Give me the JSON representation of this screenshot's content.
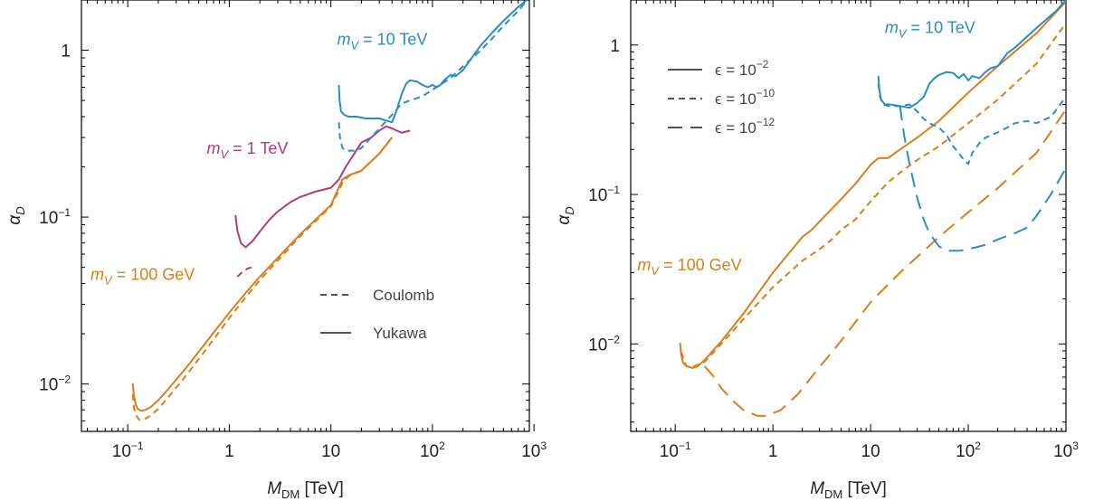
{
  "colors": {
    "orange": "#d97e1a",
    "magenta": "#b03c7a",
    "blue": "#2b8cc4",
    "legend_gray": "#555555"
  },
  "chart_data": [
    {
      "type": "line",
      "xscale": "log",
      "yscale": "log",
      "xlim": [
        0.035,
        900
      ],
      "ylim": [
        0.0052,
        2.0
      ],
      "xlabel": "M_DM [TeV]",
      "ylabel": "α_D",
      "xlabel_parts": {
        "main": "M",
        "sub": "DM",
        "rest": " [TeV]"
      },
      "ylabel_parts": {
        "main": "α",
        "sub": "D"
      },
      "xticks": [
        {
          "v": 0.1,
          "base": "10",
          "exp": "−1"
        },
        {
          "v": 1,
          "base": "1",
          "exp": ""
        },
        {
          "v": 10,
          "base": "10",
          "exp": ""
        },
        {
          "v": 100,
          "base": "10",
          "exp": "2"
        },
        {
          "v": 1000,
          "base": "10",
          "exp": "3"
        }
      ],
      "yticks": [
        {
          "v": 0.01,
          "base": "10",
          "exp": "−2"
        },
        {
          "v": 0.1,
          "base": "10",
          "exp": "−1"
        },
        {
          "v": 1,
          "base": "1",
          "exp": ""
        }
      ],
      "legend": {
        "placement": "lower-right",
        "entries": [
          {
            "label": "Coulomb",
            "style": "dashed"
          },
          {
            "label": "Yukawa",
            "style": "solid"
          }
        ]
      },
      "annotations": [
        {
          "sym": "m",
          "sub": "V",
          "rest": " = 10 TeV",
          "color": "blue",
          "at": [
            11.5,
            1.08
          ]
        },
        {
          "sym": "m",
          "sub": "V",
          "rest": " = 1 TeV",
          "color": "magenta",
          "at": [
            0.6,
            0.24
          ]
        },
        {
          "sym": "m",
          "sub": "V",
          "rest": " = 100 GeV",
          "color": "orange",
          "at": [
            0.043,
            0.042
          ]
        }
      ],
      "series": [
        {
          "color": "orange",
          "style": "solid",
          "x": [
            0.112,
            0.115,
            0.12,
            0.125,
            0.135,
            0.15,
            0.17,
            0.2,
            0.25,
            0.3,
            0.4,
            0.5,
            0.7,
            1,
            1.5,
            2,
            3,
            5,
            7,
            10,
            13,
            15,
            20,
            30,
            40
          ],
          "y": [
            0.0101,
            0.0085,
            0.0075,
            0.0071,
            0.0069,
            0.007,
            0.0073,
            0.008,
            0.0093,
            0.0106,
            0.0131,
            0.0156,
            0.0203,
            0.0268,
            0.036,
            0.044,
            0.057,
            0.079,
            0.096,
            0.118,
            0.168,
            0.178,
            0.19,
            0.24,
            0.3
          ]
        },
        {
          "color": "orange",
          "style": "dashed",
          "x": [
            0.112,
            0.115,
            0.12,
            0.13,
            0.14,
            0.15,
            0.17,
            0.2,
            0.25,
            0.3,
            0.4,
            0.5,
            0.7,
            1,
            1.5,
            2,
            3,
            5,
            7,
            10,
            13,
            15,
            20,
            30,
            40
          ],
          "y": [
            0.0087,
            0.0072,
            0.0065,
            0.0061,
            0.0061,
            0.0062,
            0.0065,
            0.0071,
            0.0083,
            0.0095,
            0.0118,
            0.0141,
            0.0185,
            0.0248,
            0.034,
            0.042,
            0.055,
            0.077,
            0.094,
            0.116,
            0.16,
            0.176,
            0.19,
            0.24,
            0.3
          ]
        },
        {
          "color": "magenta",
          "style": "solid",
          "x": [
            1.15,
            1.2,
            1.3,
            1.45,
            1.7,
            2,
            2.5,
            3,
            4,
            5,
            7,
            10,
            12,
            14,
            17,
            20,
            25,
            30,
            35,
            40,
            50,
            60
          ],
          "y": [
            0.103,
            0.083,
            0.07,
            0.066,
            0.072,
            0.082,
            0.097,
            0.108,
            0.123,
            0.132,
            0.142,
            0.15,
            0.168,
            0.2,
            0.24,
            0.28,
            0.3,
            0.33,
            0.35,
            0.34,
            0.32,
            0.33
          ]
        },
        {
          "color": "magenta",
          "style": "dashed",
          "x": [
            1.2,
            1.25,
            1.35,
            1.5,
            1.8
          ],
          "y": [
            0.044,
            0.045,
            0.047,
            0.049,
            0.051
          ]
        },
        {
          "color": "blue",
          "style": "solid",
          "x": [
            12,
            12.2,
            12.6,
            13.5,
            15,
            18,
            22,
            30,
            40,
            44,
            50,
            55,
            60,
            70,
            80,
            90,
            100,
            110,
            120,
            130,
            150,
            170,
            200,
            250,
            300,
            400,
            500,
            700,
            850
          ],
          "y": [
            0.62,
            0.5,
            0.43,
            0.41,
            0.4,
            0.4,
            0.39,
            0.39,
            0.37,
            0.43,
            0.55,
            0.63,
            0.66,
            0.65,
            0.62,
            0.6,
            0.62,
            0.6,
            0.62,
            0.66,
            0.71,
            0.7,
            0.76,
            0.92,
            1.07,
            1.3,
            1.5,
            1.82,
            2.0
          ]
        },
        {
          "color": "blue",
          "style": "dashed",
          "x": [
            12,
            12.3,
            13,
            14,
            16,
            18,
            20,
            25,
            30,
            40,
            50,
            60,
            80,
            100,
            150,
            200,
            300,
            400,
            500,
            700,
            850
          ],
          "y": [
            0.37,
            0.3,
            0.26,
            0.25,
            0.25,
            0.25,
            0.26,
            0.3,
            0.34,
            0.41,
            0.48,
            0.5,
            0.53,
            0.58,
            0.68,
            0.8,
            1.0,
            1.2,
            1.4,
            1.72,
            1.98
          ]
        }
      ]
    },
    {
      "type": "line",
      "xscale": "log",
      "yscale": "log",
      "xlim": [
        0.035,
        1000
      ],
      "ylim": [
        0.0026,
        2.0
      ],
      "xlabel": "M_DM [TeV]",
      "ylabel": "α_D",
      "xlabel_parts": {
        "main": "M",
        "sub": "DM",
        "rest": " [TeV]"
      },
      "ylabel_parts": {
        "main": "α",
        "sub": "D"
      },
      "xticks": [
        {
          "v": 0.1,
          "base": "10",
          "exp": "−1"
        },
        {
          "v": 1,
          "base": "1",
          "exp": ""
        },
        {
          "v": 10,
          "base": "10",
          "exp": ""
        },
        {
          "v": 100,
          "base": "10",
          "exp": "2"
        },
        {
          "v": 1000,
          "base": "10",
          "exp": "3"
        }
      ],
      "yticks": [
        {
          "v": 0.01,
          "base": "10",
          "exp": "−2"
        },
        {
          "v": 0.1,
          "base": "10",
          "exp": "−1"
        },
        {
          "v": 1,
          "base": "1",
          "exp": ""
        }
      ],
      "legend": {
        "placement": "top-left",
        "entries": [
          {
            "pre": "ϵ = 10",
            "exp": "−2",
            "style": "solid"
          },
          {
            "pre": "ϵ = 10",
            "exp": "−10",
            "style": "dashed"
          },
          {
            "pre": "ϵ = 10",
            "exp": "−12",
            "style": "longdash"
          }
        ]
      },
      "annotations": [
        {
          "sym": "m",
          "sub": "V",
          "rest": " = 10 TeV",
          "color": "blue",
          "at": [
            14,
            1.2
          ]
        },
        {
          "sym": "m",
          "sub": "V",
          "rest": " = 100 GeV",
          "color": "orange",
          "at": [
            0.041,
            0.031
          ]
        }
      ],
      "series": [
        {
          "color": "orange",
          "style": "solid",
          "x": [
            0.112,
            0.115,
            0.12,
            0.13,
            0.15,
            0.17,
            0.2,
            0.3,
            0.5,
            1,
            2,
            2.5,
            3,
            5,
            7,
            10,
            12,
            15,
            20,
            30,
            50,
            100,
            200,
            500,
            1000
          ],
          "y": [
            0.0102,
            0.0085,
            0.0075,
            0.0071,
            0.0069,
            0.0071,
            0.0078,
            0.0105,
            0.016,
            0.03,
            0.052,
            0.058,
            0.066,
            0.093,
            0.118,
            0.158,
            0.175,
            0.175,
            0.2,
            0.24,
            0.31,
            0.48,
            0.72,
            1.2,
            1.95
          ]
        },
        {
          "color": "orange",
          "style": "dashed",
          "x": [
            0.115,
            0.13,
            0.15,
            0.2,
            0.3,
            0.5,
            1,
            2,
            3,
            4,
            5,
            7,
            10,
            15,
            20,
            30,
            50,
            100,
            200,
            500,
            1000
          ],
          "y": [
            0.0088,
            0.0071,
            0.007,
            0.0076,
            0.0101,
            0.0147,
            0.024,
            0.036,
            0.043,
            0.05,
            0.058,
            0.068,
            0.09,
            0.12,
            0.14,
            0.17,
            0.21,
            0.3,
            0.43,
            0.75,
            1.4
          ]
        },
        {
          "color": "orange",
          "style": "longdash",
          "x": [
            0.2,
            0.25,
            0.3,
            0.4,
            0.5,
            0.7,
            0.85,
            1.2,
            1.8,
            3,
            5,
            10,
            20,
            50,
            100,
            200,
            500,
            1000
          ],
          "y": [
            0.0071,
            0.006,
            0.005,
            0.0041,
            0.0036,
            0.0033,
            0.0033,
            0.0036,
            0.0046,
            0.007,
            0.0105,
            0.019,
            0.03,
            0.052,
            0.076,
            0.11,
            0.19,
            0.37
          ]
        },
        {
          "color": "blue",
          "style": "solid",
          "x": [
            12,
            12.3,
            12.8,
            14,
            16,
            20,
            25,
            30,
            35,
            40,
            45,
            50,
            60,
            70,
            80,
            90,
            100,
            110,
            130,
            150,
            170,
            200,
            250,
            300,
            500,
            800,
            1000
          ],
          "y": [
            0.62,
            0.5,
            0.43,
            0.4,
            0.4,
            0.39,
            0.38,
            0.41,
            0.45,
            0.55,
            0.6,
            0.63,
            0.66,
            0.65,
            0.6,
            0.64,
            0.58,
            0.62,
            0.6,
            0.66,
            0.7,
            0.72,
            0.88,
            0.96,
            1.3,
            1.7,
            2.0
          ]
        },
        {
          "color": "blue",
          "style": "dashed",
          "x": [
            12,
            12.5,
            13.5,
            15,
            20,
            25,
            30,
            35,
            40,
            50,
            60,
            70,
            80,
            90,
            100,
            110,
            130,
            150,
            200,
            250,
            300,
            400,
            500,
            700,
            1000
          ],
          "y": [
            0.55,
            0.45,
            0.4,
            0.39,
            0.39,
            0.4,
            0.36,
            0.32,
            0.3,
            0.28,
            0.25,
            0.21,
            0.19,
            0.17,
            0.16,
            0.19,
            0.22,
            0.24,
            0.26,
            0.28,
            0.3,
            0.31,
            0.3,
            0.33,
            0.45
          ]
        },
        {
          "color": "blue",
          "style": "longdash",
          "x": [
            20,
            22,
            25,
            30,
            35,
            40,
            50,
            60,
            80,
            100,
            150,
            200,
            300,
            400,
            500,
            700,
            1000
          ],
          "y": [
            0.39,
            0.25,
            0.16,
            0.095,
            0.068,
            0.055,
            0.045,
            0.042,
            0.042,
            0.043,
            0.046,
            0.05,
            0.055,
            0.06,
            0.072,
            0.1,
            0.15
          ]
        }
      ]
    }
  ]
}
